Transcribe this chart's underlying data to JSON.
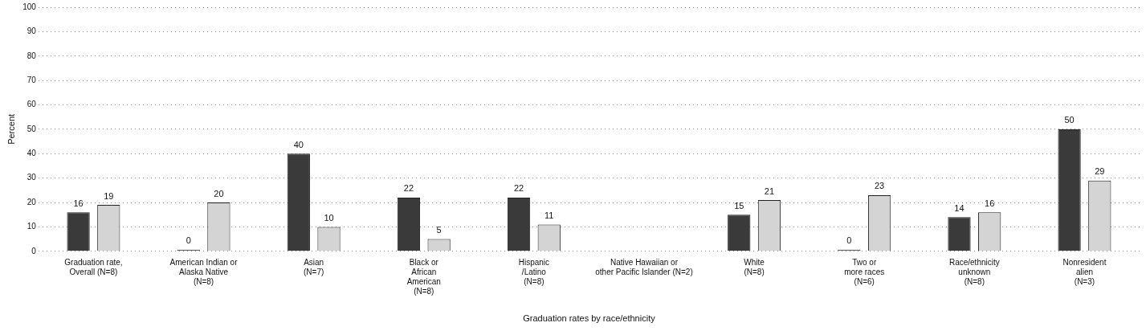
{
  "chart_data": {
    "type": "bar",
    "xlabel": "Graduation rates by race/ethnicity",
    "ylabel": "Percent",
    "categories": [
      "Graduation rate,\nOverall (N=8)",
      "American Indian or\nAlaska Native\n(N=8)",
      "Asian\n(N=7)",
      "Black or\nAfrican\nAmerican\n(N=8)",
      "Hispanic\n/Latino\n(N=8)",
      "Native Hawaiian or\nother Pacific Islander (N=2)",
      "White\n(N=8)",
      "Two or\nmore races\n(N=6)",
      "Race/ethnicity\nunknown\n(N=8)",
      "Nonresident\nalien\n(N=3)"
    ],
    "series": [
      {
        "color": "#3a3a3a",
        "values": [
          16,
          0,
          40,
          22,
          22,
          null,
          15,
          0,
          14,
          50
        ]
      },
      {
        "color": "#d4d4d4",
        "values": [
          19,
          20,
          10,
          5,
          11,
          null,
          21,
          23,
          16,
          29
        ]
      }
    ],
    "ylim": [
      0,
      100
    ],
    "yticks": [
      0,
      10,
      20,
      30,
      40,
      50,
      60,
      70,
      80,
      90,
      100
    ],
    "grid": "y",
    "data_labels": true,
    "legend": false
  }
}
